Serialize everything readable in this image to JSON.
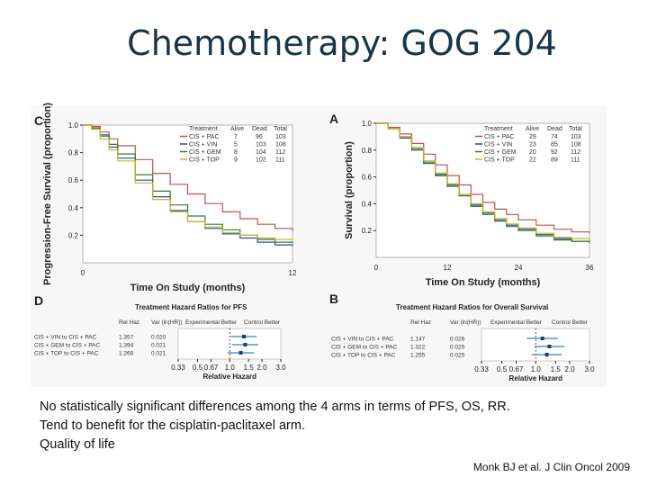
{
  "slide": {
    "title": "Chemotherapy: GOG 204",
    "bullets": [
      "No statistically significant differences among the 4 arms in terms of PFS, OS, RR.",
      "Tend to benefit for the cisplatin-paclitaxel arm.",
      "Quality of life"
    ],
    "citation": "Monk BJ et al. J Clin Oncol 2009"
  },
  "colors": {
    "PAC": "#c0504d",
    "VIN": "#1f4e9c",
    "GEM": "#2e7d32",
    "TOP": "#d6b21e",
    "ci": "#2e86c1"
  },
  "chart_data": [
    {
      "panel": "C",
      "type": "line",
      "xlabel": "Time On Study (months)",
      "ylabel": "Progression-Free Survival (proportion)",
      "xlim": [
        0,
        12
      ],
      "ylim": [
        0,
        1.0
      ],
      "xticks": [
        "0",
        "12"
      ],
      "yticks": [
        "1.0",
        "0.8",
        "0.6",
        "0.4",
        "0.2"
      ],
      "legend_header": [
        "Treatment",
        "Alive",
        "Dead",
        "Total"
      ],
      "series": [
        {
          "name": "CIS + PAC",
          "alive": "7",
          "dead": "96",
          "total": "103",
          "color_key": "PAC",
          "x": [
            0,
            0.5,
            1,
            1.5,
            2,
            3,
            4,
            5,
            6,
            7,
            8,
            9,
            10,
            11,
            12
          ],
          "y": [
            1.0,
            0.99,
            0.95,
            0.9,
            0.85,
            0.75,
            0.65,
            0.57,
            0.5,
            0.43,
            0.37,
            0.32,
            0.28,
            0.25,
            0.23
          ]
        },
        {
          "name": "CIS + VIN",
          "alive": "5",
          "dead": "103",
          "total": "108",
          "color_key": "VIN",
          "x": [
            0,
            0.5,
            1,
            1.5,
            2,
            3,
            4,
            5,
            6,
            7,
            8,
            9,
            10,
            11,
            12
          ],
          "y": [
            1.0,
            0.98,
            0.92,
            0.84,
            0.76,
            0.6,
            0.48,
            0.38,
            0.3,
            0.25,
            0.21,
            0.18,
            0.15,
            0.13,
            0.12
          ]
        },
        {
          "name": "CIS + GEM",
          "alive": "8",
          "dead": "104",
          "total": "112",
          "color_key": "GEM",
          "x": [
            0,
            0.5,
            1,
            1.5,
            2,
            3,
            4,
            5,
            6,
            7,
            8,
            9,
            10,
            11,
            12
          ],
          "y": [
            1.0,
            0.98,
            0.93,
            0.86,
            0.79,
            0.64,
            0.52,
            0.42,
            0.34,
            0.28,
            0.24,
            0.2,
            0.17,
            0.15,
            0.14
          ]
        },
        {
          "name": "CIS + TOP",
          "alive": "9",
          "dead": "102",
          "total": "111",
          "color_key": "TOP",
          "x": [
            0,
            0.5,
            1,
            1.5,
            2,
            3,
            4,
            5,
            6,
            7,
            8,
            9,
            10,
            11,
            12
          ],
          "y": [
            1.0,
            0.97,
            0.9,
            0.82,
            0.74,
            0.58,
            0.46,
            0.37,
            0.3,
            0.26,
            0.22,
            0.2,
            0.18,
            0.17,
            0.16
          ]
        }
      ]
    },
    {
      "panel": "A",
      "type": "line",
      "xlabel": "Time On Study (months)",
      "ylabel": "Survival (proportion)",
      "xlim": [
        0,
        36
      ],
      "ylim": [
        0,
        1.0
      ],
      "xticks": [
        "0",
        "12",
        "24",
        "36"
      ],
      "yticks": [
        "1.0",
        "0.8",
        "0.6",
        "0.4",
        "0.2"
      ],
      "legend_header": [
        "Treatment",
        "Alive",
        "Dead",
        "Total"
      ],
      "series": [
        {
          "name": "CIS + PAC",
          "alive": "29",
          "dead": "74",
          "total": "103",
          "color_key": "PAC",
          "x": [
            0,
            2,
            4,
            6,
            8,
            10,
            12,
            14,
            16,
            18,
            20,
            22,
            24,
            27,
            30,
            33,
            36
          ],
          "y": [
            1.0,
            0.97,
            0.92,
            0.85,
            0.77,
            0.69,
            0.61,
            0.54,
            0.47,
            0.41,
            0.36,
            0.32,
            0.28,
            0.24,
            0.21,
            0.19,
            0.18
          ]
        },
        {
          "name": "CIS + VIN",
          "alive": "23",
          "dead": "85",
          "total": "108",
          "color_key": "VIN",
          "x": [
            0,
            2,
            4,
            6,
            8,
            10,
            12,
            14,
            16,
            18,
            20,
            22,
            24,
            27,
            30,
            33,
            36
          ],
          "y": [
            1.0,
            0.96,
            0.89,
            0.8,
            0.7,
            0.61,
            0.53,
            0.46,
            0.39,
            0.33,
            0.28,
            0.24,
            0.21,
            0.17,
            0.14,
            0.12,
            0.11
          ]
        },
        {
          "name": "CIS + GEM",
          "alive": "20",
          "dead": "92",
          "total": "112",
          "color_key": "GEM",
          "x": [
            0,
            2,
            4,
            6,
            8,
            10,
            12,
            14,
            16,
            18,
            20,
            22,
            24,
            27,
            30,
            33,
            36
          ],
          "y": [
            1.0,
            0.96,
            0.9,
            0.81,
            0.71,
            0.62,
            0.54,
            0.46,
            0.38,
            0.32,
            0.27,
            0.23,
            0.2,
            0.16,
            0.13,
            0.12,
            0.11
          ]
        },
        {
          "name": "CIS + TOP",
          "alive": "22",
          "dead": "89",
          "total": "111",
          "color_key": "TOP",
          "x": [
            0,
            2,
            4,
            6,
            8,
            10,
            12,
            14,
            16,
            18,
            20,
            22,
            24,
            27,
            30,
            33,
            36
          ],
          "y": [
            1.0,
            0.96,
            0.9,
            0.82,
            0.72,
            0.63,
            0.55,
            0.47,
            0.4,
            0.34,
            0.29,
            0.25,
            0.22,
            0.18,
            0.15,
            0.14,
            0.13
          ]
        }
      ]
    },
    {
      "panel": "D",
      "type": "scatter",
      "title": "Treatment Hazard Ratios for PFS",
      "xlabel": "Relative Hazard",
      "col_headers": [
        "Rel Haz",
        "Var (ln(HR))"
      ],
      "favor_left": "Experimental Better",
      "favor_right": "Control Better",
      "xticks": [
        "0.33",
        "0.5",
        "0.67",
        "1.0",
        "1.5",
        "2.0",
        "3.0"
      ],
      "xtick_values": [
        0.33,
        0.5,
        0.67,
        1.0,
        1.5,
        2.0,
        3.0
      ],
      "rows": [
        {
          "label": "CIS + VIN to CIS + PAC",
          "hr": "1.357",
          "var": "0.020",
          "hr_value": 1.357
        },
        {
          "label": "CIS + GEM to CIS + PAC",
          "hr": "1.394",
          "var": "0.021",
          "hr_value": 1.394
        },
        {
          "label": "CIS + TOP to CIS + PAC",
          "hr": "1.268",
          "var": "0.021",
          "hr_value": 1.268
        }
      ]
    },
    {
      "panel": "B",
      "type": "scatter",
      "title": "Treatment Hazard Ratios for Overall Survival",
      "xlabel": "Relative Hazard",
      "col_headers": [
        "Rel Haz",
        "Var (ln(HR))"
      ],
      "favor_left": "Experimental Better",
      "favor_right": "Control Better",
      "xticks": [
        "0.33",
        "0.5",
        "0.67",
        "1.0",
        "1.5",
        "2.0",
        "3.0"
      ],
      "xtick_values": [
        0.33,
        0.5,
        0.67,
        1.0,
        1.5,
        2.0,
        3.0
      ],
      "rows": [
        {
          "label": "CIS + VIN to CIS + PAC",
          "hr": "1.147",
          "var": "0.026",
          "hr_value": 1.147
        },
        {
          "label": "CIS + GEM to CIS + PAC",
          "hr": "1.322",
          "var": "0.025",
          "hr_value": 1.322
        },
        {
          "label": "CIS + TOP to CIS + PAC",
          "hr": "1.255",
          "var": "0.025",
          "hr_value": 1.255
        }
      ]
    }
  ]
}
